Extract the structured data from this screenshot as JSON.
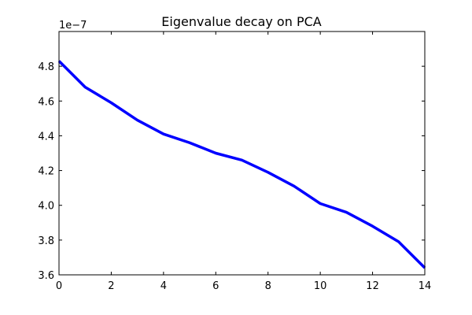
{
  "chart_data": {
    "type": "line",
    "title": "Eigenvalue decay on PCA",
    "xlabel": "",
    "ylabel": "",
    "y_offset_text": "1e−7",
    "xlim": [
      0,
      14
    ],
    "ylim": [
      3.6,
      5.0
    ],
    "x_ticks": [
      0,
      2,
      4,
      6,
      8,
      10,
      12,
      14
    ],
    "x_tick_labels": [
      "0",
      "2",
      "4",
      "6",
      "8",
      "10",
      "12",
      "14"
    ],
    "y_ticks": [
      3.6,
      3.8,
      4.0,
      4.2,
      4.4,
      4.6,
      4.8
    ],
    "y_tick_labels": [
      "3.6",
      "3.8",
      "4.0",
      "4.2",
      "4.4",
      "4.6",
      "4.8"
    ],
    "grid": false,
    "series": [
      {
        "color": "#0000ff",
        "x": [
          0,
          1,
          2,
          3,
          4,
          5,
          6,
          7,
          8,
          9,
          10,
          11,
          12,
          13,
          14
        ],
        "y": [
          4.83,
          4.68,
          4.59,
          4.49,
          4.41,
          4.36,
          4.3,
          4.26,
          4.19,
          4.11,
          4.01,
          3.96,
          3.88,
          3.79,
          3.64
        ]
      }
    ]
  }
}
